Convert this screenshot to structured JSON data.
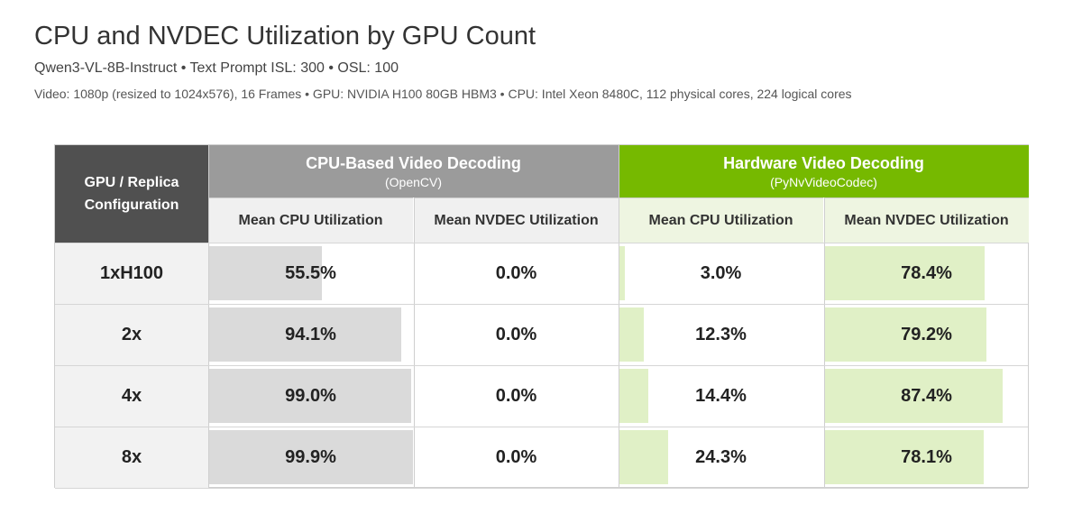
{
  "header": {
    "title": "CPU and NVDEC Utilization by GPU Count",
    "subtitle": "Qwen3-VL-8B-Instruct  •  Text Prompt ISL: 300  •  OSL: 100",
    "note": "Video: 1080p (resized to 1024x576), 16 Frames  •  GPU: NVIDIA H100 80GB HBM3  •  CPU: Intel Xeon 8480C, 112 physical cores, 224 logical cores"
  },
  "colors": {
    "cpu_group_header": "#9b9b9b",
    "hw_group_header": "#76b900",
    "config_header": "#505050",
    "cpu_bar": "#dadada",
    "hw_bar": "#e0f0c6"
  },
  "chart_data": {
    "type": "table",
    "config_header": [
      "GPU / Replica",
      "Configuration"
    ],
    "groups": [
      {
        "title": "CPU-Based Video Decoding",
        "subtitle": "(OpenCV)"
      },
      {
        "title": "Hardware Video Decoding",
        "subtitle": "(PyNvVideoCodec)"
      }
    ],
    "columns": [
      "Mean CPU Utilization",
      "Mean NVDEC Utilization",
      "Mean CPU Utilization",
      "Mean NVDEC Utilization"
    ],
    "rows": [
      {
        "label": "1xH100",
        "values": [
          55.5,
          0.0,
          3.0,
          78.4
        ],
        "display": [
          "55.5%",
          "0.0%",
          "3.0%",
          "78.4%"
        ]
      },
      {
        "label": "2x",
        "values": [
          94.1,
          0.0,
          12.3,
          79.2
        ],
        "display": [
          "94.1%",
          "0.0%",
          "12.3%",
          "79.2%"
        ]
      },
      {
        "label": "4x",
        "values": [
          99.0,
          0.0,
          14.4,
          87.4
        ],
        "display": [
          "99.0%",
          "0.0%",
          "14.4%",
          "87.4%"
        ]
      },
      {
        "label": "8x",
        "values": [
          99.9,
          0.0,
          24.3,
          78.1
        ],
        "display": [
          "99.9%",
          "0.0%",
          "24.3%",
          "78.1%"
        ]
      }
    ],
    "unit": "%",
    "value_range": [
      0,
      100
    ]
  }
}
